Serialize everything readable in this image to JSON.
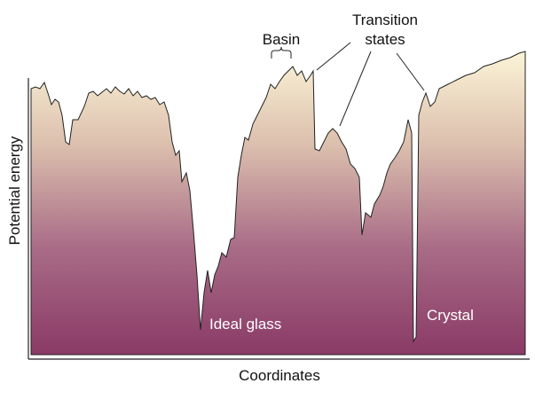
{
  "labels": {
    "basin": "Basin",
    "transition_states": [
      "Transition",
      "states"
    ],
    "ideal_glass": "Ideal glass",
    "crystal": "Crystal"
  },
  "axes": {
    "y_label": "Potential energy",
    "x_label": "Coordinates"
  }
}
